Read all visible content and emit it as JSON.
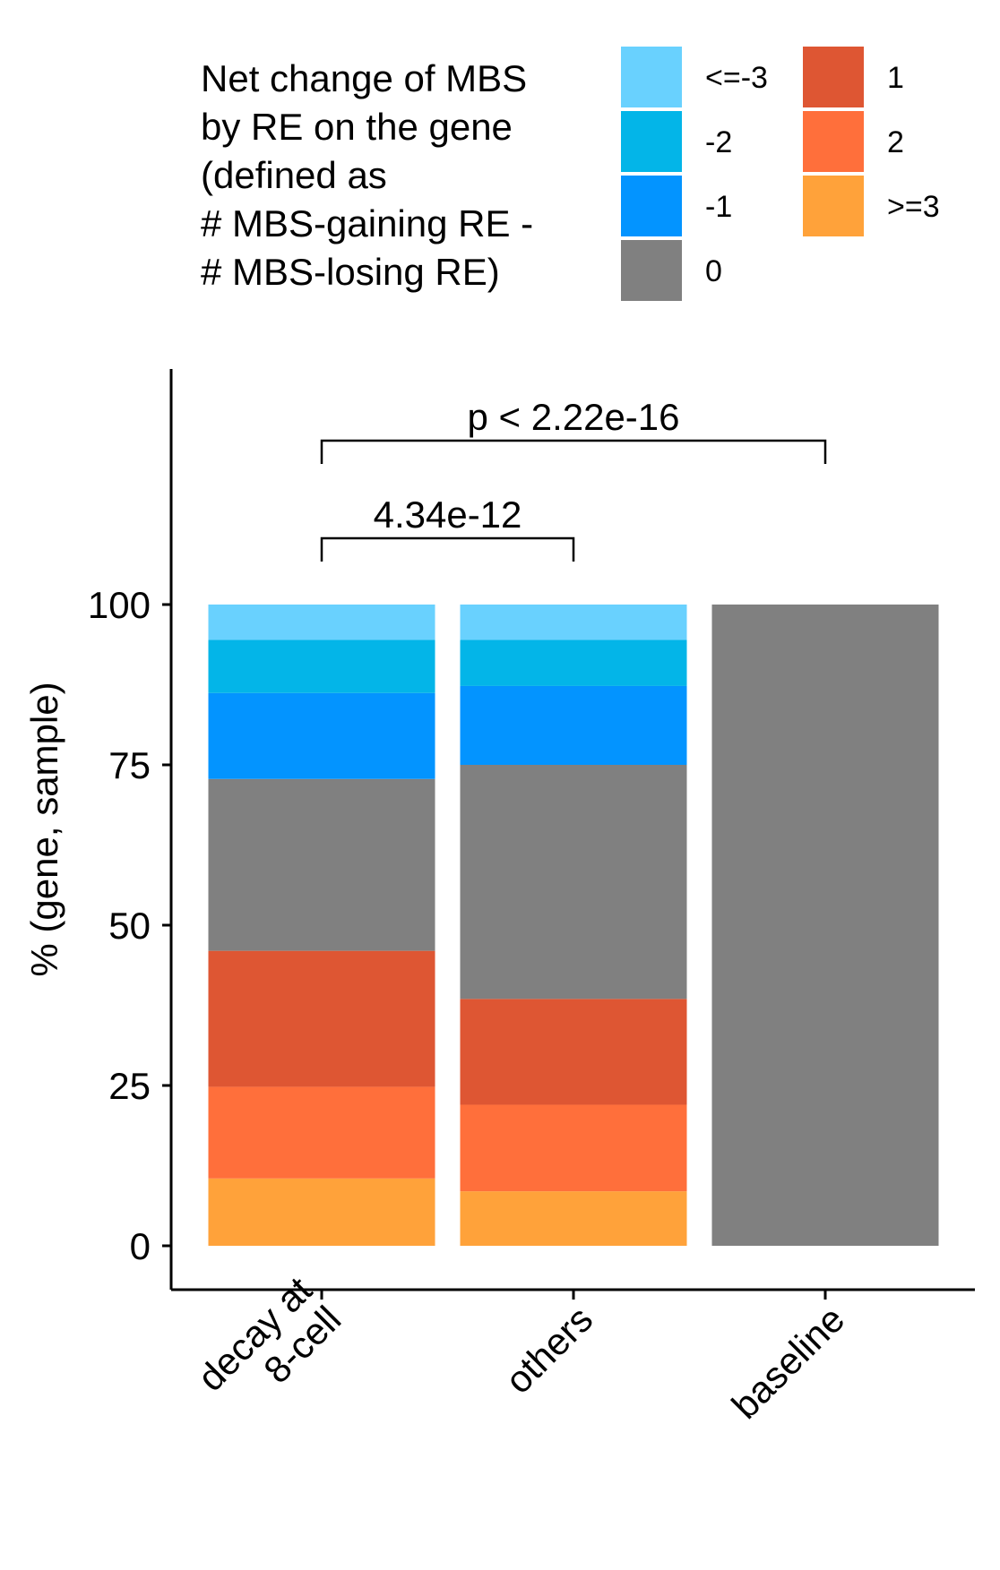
{
  "chart_data": {
    "type": "bar",
    "stacked": true,
    "categories": [
      "decay at 8-cell",
      "others",
      "baseline"
    ],
    "category_label_lines": [
      [
        "decay at",
        "8-cell"
      ],
      [
        "others"
      ],
      [
        "baseline"
      ]
    ],
    "ylabel": "% (gene, sample)",
    "xlabel": "",
    "ylim": [
      0,
      100
    ],
    "y_ticks": [
      "0",
      "25",
      "50",
      "75",
      "100"
    ],
    "y_tick_values": [
      0,
      25,
      50,
      75,
      100
    ],
    "grid": false,
    "legend": {
      "title_lines": [
        "Net change of MBS",
        "by RE on the gene",
        "(defined as",
        "# MBS-gaining RE -",
        "# MBS-losing RE)"
      ],
      "position": "top",
      "columns": [
        [
          "<=-3",
          "-2",
          "-1",
          "0"
        ],
        [
          "1",
          "2",
          ">=3"
        ]
      ]
    },
    "series": [
      {
        "name": ">=3",
        "color": "#FFA23A",
        "values": [
          10.5,
          8.5,
          0
        ]
      },
      {
        "name": "2",
        "color": "#FF6F3B",
        "values": [
          14.3,
          13.5,
          0
        ]
      },
      {
        "name": "1",
        "color": "#DE5633",
        "values": [
          21.2,
          16.5,
          0
        ]
      },
      {
        "name": "0",
        "color": "#808080",
        "values": [
          26.8,
          36.5,
          100
        ]
      },
      {
        "name": "-1",
        "color": "#0394FF",
        "values": [
          13.4,
          12.3,
          0
        ]
      },
      {
        "name": "-2",
        "color": "#03B5E8",
        "values": [
          8.3,
          7.2,
          0
        ]
      },
      {
        "name": "<=-3",
        "color": "#69D1FE",
        "values": [
          5.5,
          5.5,
          0
        ]
      }
    ],
    "comparisons": [
      {
        "from": "decay at 8-cell",
        "to": "others",
        "label": "4.34e-12"
      },
      {
        "from": "decay at 8-cell",
        "to": "baseline",
        "label": "p < 2.22e-16"
      }
    ]
  }
}
